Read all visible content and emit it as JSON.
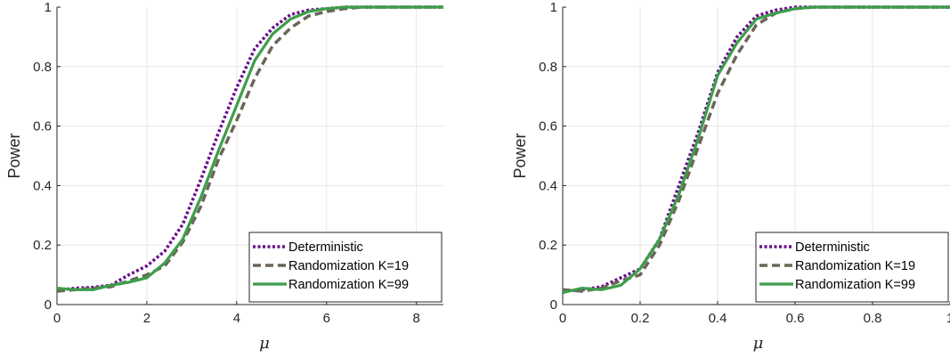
{
  "colors": {
    "deterministic": "#6a0f8e",
    "k19": "#6b6658",
    "k99": "#3d9e4a"
  },
  "chart_data": [
    {
      "type": "line",
      "xlabel": "μ",
      "ylabel": "Power",
      "xlim": [
        0,
        8.6
      ],
      "ylim": [
        0,
        1
      ],
      "xticks": [
        0,
        2,
        4,
        6,
        8
      ],
      "yticks": [
        0,
        0.2,
        0.4,
        0.6,
        0.8,
        1
      ],
      "xtick_labels": [
        "0",
        "2",
        "4",
        "6",
        "8"
      ],
      "ytick_labels": [
        "0",
        "0.2",
        "0.4",
        "0.6",
        "0.8",
        "1"
      ],
      "grid": true,
      "legend_position": "bottom-right",
      "series": [
        {
          "name": "Deterministic",
          "style": "dotted",
          "x": [
            0,
            0.4,
            0.8,
            1.2,
            1.6,
            2.0,
            2.4,
            2.8,
            3.2,
            3.6,
            4.0,
            4.4,
            4.8,
            5.2,
            5.6,
            6.0,
            6.4,
            6.8,
            7.2,
            7.6,
            8.0,
            8.6
          ],
          "values": [
            0.048,
            0.055,
            0.058,
            0.065,
            0.1,
            0.13,
            0.18,
            0.27,
            0.42,
            0.58,
            0.73,
            0.86,
            0.93,
            0.975,
            0.99,
            0.995,
            1.0,
            1.0,
            1.0,
            1.0,
            1.0,
            1.0
          ]
        },
        {
          "name": "Randomization K=19",
          "style": "dashed",
          "x": [
            0,
            0.4,
            0.8,
            1.2,
            1.6,
            2.0,
            2.4,
            2.8,
            3.2,
            3.6,
            4.0,
            4.4,
            4.8,
            5.2,
            5.6,
            6.0,
            6.4,
            6.8,
            7.2,
            7.6,
            8.0,
            8.6
          ],
          "values": [
            0.045,
            0.05,
            0.055,
            0.06,
            0.08,
            0.1,
            0.13,
            0.21,
            0.33,
            0.49,
            0.62,
            0.76,
            0.87,
            0.93,
            0.97,
            0.985,
            0.995,
            1.0,
            1.0,
            1.0,
            1.0,
            1.0
          ]
        },
        {
          "name": "Randomization K=99",
          "style": "solid",
          "x": [
            0,
            0.4,
            0.8,
            1.2,
            1.6,
            2.0,
            2.4,
            2.8,
            3.2,
            3.6,
            4.0,
            4.4,
            4.8,
            5.2,
            5.6,
            6.0,
            6.4,
            6.8,
            7.2,
            7.6,
            8.0,
            8.6
          ],
          "values": [
            0.055,
            0.05,
            0.05,
            0.065,
            0.075,
            0.09,
            0.14,
            0.22,
            0.36,
            0.52,
            0.67,
            0.82,
            0.91,
            0.96,
            0.985,
            0.995,
            1.0,
            1.0,
            1.0,
            1.0,
            1.0,
            1.0
          ]
        }
      ]
    },
    {
      "type": "line",
      "xlabel": "μ",
      "ylabel": "Power",
      "xlim": [
        0,
        1
      ],
      "ylim": [
        0,
        1
      ],
      "xticks": [
        0,
        0.2,
        0.4,
        0.6,
        0.8,
        1
      ],
      "yticks": [
        0,
        0.2,
        0.4,
        0.6,
        0.8,
        1
      ],
      "xtick_labels": [
        "0",
        "0.2",
        "0.4",
        "0.6",
        "0.8",
        "1"
      ],
      "ytick_labels": [
        "0",
        "0.2",
        "0.4",
        "0.6",
        "0.8",
        "1"
      ],
      "grid": true,
      "legend_position": "bottom-right",
      "series": [
        {
          "name": "Deterministic",
          "style": "dotted",
          "x": [
            0,
            0.05,
            0.1,
            0.15,
            0.2,
            0.25,
            0.3,
            0.35,
            0.4,
            0.45,
            0.5,
            0.55,
            0.6,
            0.65,
            0.7,
            0.75,
            0.8,
            0.85,
            0.9,
            0.95,
            1.0
          ],
          "values": [
            0.045,
            0.05,
            0.06,
            0.09,
            0.12,
            0.22,
            0.4,
            0.58,
            0.78,
            0.9,
            0.97,
            0.99,
            1.0,
            1.0,
            1.0,
            1.0,
            1.0,
            1.0,
            1.0,
            1.0,
            1.0
          ]
        },
        {
          "name": "Randomization K=19",
          "style": "dashed",
          "x": [
            0,
            0.05,
            0.1,
            0.15,
            0.2,
            0.25,
            0.3,
            0.35,
            0.4,
            0.45,
            0.5,
            0.55,
            0.6,
            0.65,
            0.7,
            0.75,
            0.8,
            0.85,
            0.9,
            0.95,
            1.0
          ],
          "values": [
            0.05,
            0.045,
            0.055,
            0.08,
            0.1,
            0.2,
            0.35,
            0.53,
            0.71,
            0.84,
            0.94,
            0.98,
            0.995,
            1.0,
            1.0,
            1.0,
            1.0,
            1.0,
            1.0,
            1.0,
            1.0
          ]
        },
        {
          "name": "Randomization K=99",
          "style": "solid",
          "x": [
            0,
            0.05,
            0.1,
            0.15,
            0.2,
            0.25,
            0.3,
            0.35,
            0.4,
            0.45,
            0.5,
            0.55,
            0.6,
            0.65,
            0.7,
            0.75,
            0.8,
            0.85,
            0.9,
            0.95,
            1.0
          ],
          "values": [
            0.04,
            0.055,
            0.05,
            0.065,
            0.12,
            0.22,
            0.37,
            0.56,
            0.77,
            0.88,
            0.96,
            0.98,
            0.995,
            1.0,
            1.0,
            1.0,
            1.0,
            1.0,
            1.0,
            1.0,
            1.0
          ]
        }
      ]
    }
  ]
}
